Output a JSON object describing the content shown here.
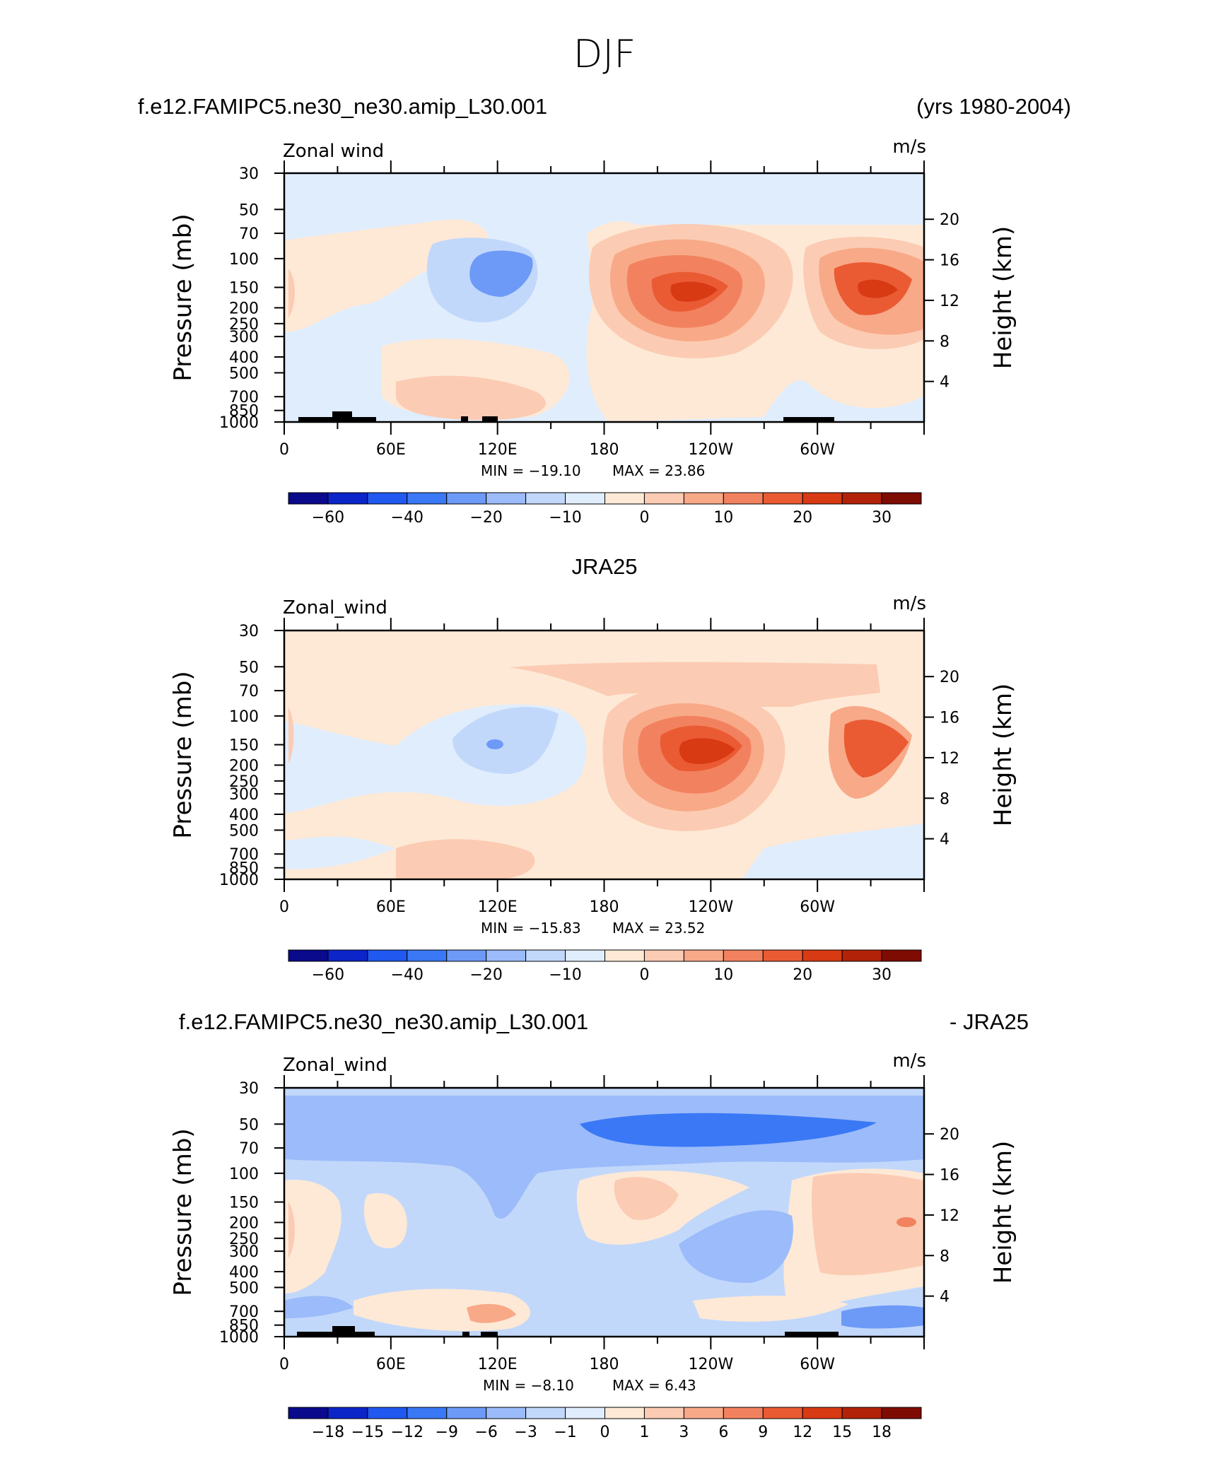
{
  "figure": {
    "title": "DJF",
    "season_colors": {
      "neg": [
        "#0a0a8c",
        "#0b25c9",
        "#2058f0",
        "#3a78f5",
        "#6d9af7",
        "#9bbbfa",
        "#c2d8fb",
        "#e0edfd"
      ],
      "pos": [
        "#fde9d6",
        "#fccbb3",
        "#f8a988",
        "#f2825f",
        "#ea5b34",
        "#d83a14",
        "#b12208",
        "#7f0c03"
      ]
    }
  },
  "chart_data": [
    {
      "type": "heatmap",
      "header_left": "f.e12.FAMIPC5.ne30_ne30.amip_L30.001",
      "header_right": "(yrs 1980-2004)",
      "variable": "Zonal wind",
      "units": "m/s",
      "xlabels": [
        "0",
        "60E",
        "120E",
        "180",
        "120W",
        "60W"
      ],
      "x_range": [
        0,
        360
      ],
      "ylabel": "Pressure (mb)",
      "yticks": [
        "30",
        "50",
        "70",
        "100",
        "150",
        "200",
        "250",
        "300",
        "400",
        "500",
        "700",
        "850",
        "1000"
      ],
      "y_range_mb": [
        30,
        1000
      ],
      "ylabel_right": "Height (km)",
      "yticks_right": [
        "20",
        "16",
        "12",
        "8",
        "4"
      ],
      "min_label": "MIN = −19.10",
      "max_label": "MAX =  23.86",
      "min": -19.1,
      "max": 23.86,
      "colorbar_labels": [
        "−60",
        "−40",
        "−20",
        "−10",
        "0",
        "10",
        "20",
        "30"
      ],
      "colorbar_levels": [
        -70,
        -60,
        -50,
        -40,
        -30,
        -20,
        -15,
        -10,
        -5,
        0,
        5,
        10,
        15,
        20,
        25,
        30,
        35
      ],
      "features": [
        {
          "kind": "jet",
          "lon": 212,
          "p": 155,
          "peak": 23.86
        },
        {
          "kind": "jet",
          "lon": 334,
          "p": 155,
          "peak": 22
        },
        {
          "kind": "easterly",
          "lon": 122,
          "p": 140,
          "peak": -12
        }
      ]
    },
    {
      "type": "heatmap",
      "header_center": "JRA25",
      "variable": "Zonal_wind",
      "units": "m/s",
      "xlabels": [
        "0",
        "60E",
        "120E",
        "180",
        "120W",
        "60W"
      ],
      "x_range": [
        0,
        360
      ],
      "ylabel": "Pressure (mb)",
      "yticks": [
        "30",
        "50",
        "70",
        "100",
        "150",
        "200",
        "250",
        "300",
        "400",
        "500",
        "700",
        "850",
        "1000"
      ],
      "y_range_mb": [
        30,
        1000
      ],
      "ylabel_right": "Height (km)",
      "yticks_right": [
        "20",
        "16",
        "12",
        "8",
        "4"
      ],
      "min_label": "MIN = −15.83",
      "max_label": "MAX =  23.52",
      "min": -15.83,
      "max": 23.52,
      "colorbar_labels": [
        "−60",
        "−40",
        "−20",
        "−10",
        "0",
        "10",
        "20",
        "30"
      ],
      "colorbar_levels": [
        -70,
        -60,
        -50,
        -40,
        -30,
        -20,
        -15,
        -10,
        -5,
        0,
        5,
        10,
        15,
        20,
        25,
        30,
        35
      ],
      "features": [
        {
          "kind": "jet",
          "lon": 236,
          "p": 160,
          "peak": 23.52
        },
        {
          "kind": "jet",
          "lon": 342,
          "p": 150,
          "peak": 18
        },
        {
          "kind": "easterly",
          "lon": 118,
          "p": 150,
          "peak": -11
        }
      ]
    },
    {
      "type": "heatmap",
      "header_left": "f.e12.FAMIPC5.ne30_ne30.amip_L30.001",
      "header_right": "- JRA25",
      "variable": "Zonal_wind",
      "units": "m/s",
      "xlabels": [
        "0",
        "60E",
        "120E",
        "180",
        "120W",
        "60W"
      ],
      "x_range": [
        0,
        360
      ],
      "ylabel": "Pressure (mb)",
      "yticks": [
        "30",
        "50",
        "70",
        "100",
        "150",
        "200",
        "250",
        "300",
        "400",
        "500",
        "700",
        "850",
        "1000"
      ],
      "y_range_mb": [
        30,
        1000
      ],
      "ylabel_right": "Height (km)",
      "yticks_right": [
        "20",
        "16",
        "12",
        "8",
        "4"
      ],
      "min_label": "MIN =    −8.10",
      "max_label": "MAX =     6.43",
      "min": -8.1,
      "max": 6.43,
      "colorbar_labels": [
        "−18",
        "−15",
        "−12",
        "−9",
        "−6",
        "−3",
        "−1",
        "0",
        "1",
        "3",
        "6",
        "9",
        "12",
        "15",
        "18"
      ],
      "colorbar_levels": [
        -21,
        -18,
        -15,
        -12,
        -9,
        -6,
        -3,
        -1,
        0,
        1,
        3,
        6,
        9,
        12,
        15,
        18,
        21
      ],
      "features": [
        {
          "kind": "band",
          "lon": 180,
          "p": 50,
          "peak": -7
        },
        {
          "kind": "warm",
          "lon": 345,
          "p": 200,
          "peak": 6.43
        }
      ]
    }
  ]
}
